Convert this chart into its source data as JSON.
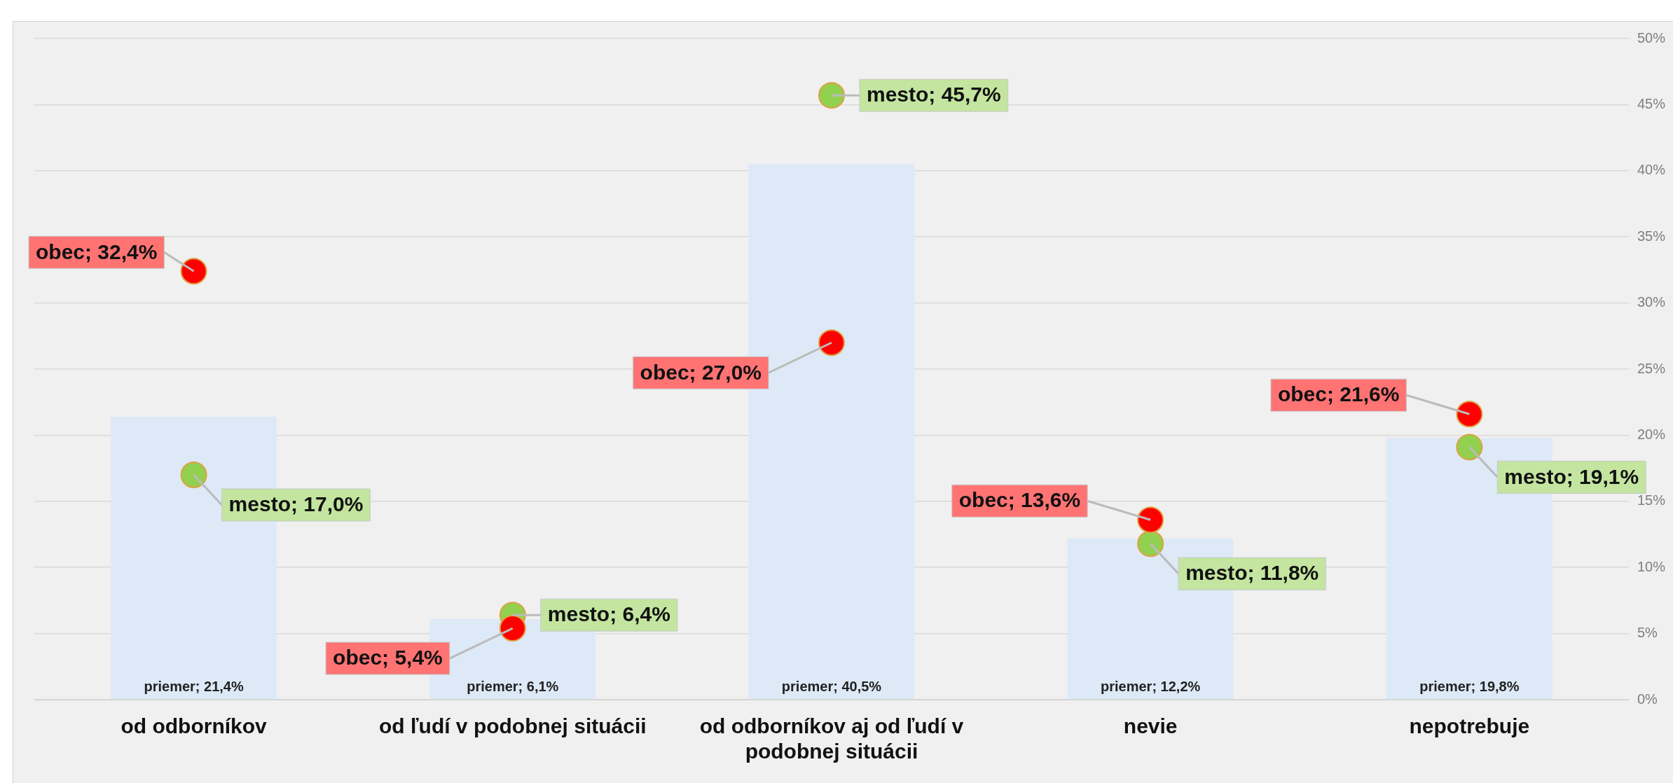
{
  "chart_data": {
    "type": "bar",
    "categories": [
      "od odborníkov",
      "od ľudí v podobnej situácii",
      "od odborníkov aj od ľudí v podobnej situácii",
      "nevie",
      "nepotrebuje"
    ],
    "series": [
      {
        "color": "#dde9f6",
        "values": [
          21.4,
          6.1,
          40.5,
          12.2,
          19.8
        ],
        "value_labels": [
          "priemer; 21,4%",
          "priemer; 6,1%",
          "priemer; 40,5%",
          "priemer; 12,2%",
          "priemer; 19,8%"
        ]
      },
      {
        "type": "scatter",
        "color": "#ff0000",
        "values": [
          32.4,
          5.4,
          27.0,
          13.6,
          21.6
        ],
        "value_labels": [
          "obec; 32,4%",
          "obec; 5,4%",
          "obec; 27,0%",
          "obec; 13,6%",
          "obec; 21,6%"
        ]
      },
      {
        "type": "scatter",
        "color": "#92d050",
        "values": [
          17.0,
          6.4,
          45.7,
          11.8,
          19.1
        ],
        "value_labels": [
          "mesto; 17,0%",
          "mesto; 6,4%",
          "mesto; 45,7%",
          "mesto; 11,8%",
          "mesto; 19,1%"
        ]
      }
    ],
    "ylim": [
      0,
      50
    ],
    "yticks": [
      {
        "value": 0,
        "label": "0%"
      },
      {
        "value": 5,
        "label": "5%"
      },
      {
        "value": 10,
        "label": "10%"
      },
      {
        "value": 15,
        "label": "15%"
      },
      {
        "value": 20,
        "label": "20%"
      },
      {
        "value": 25,
        "label": "25%"
      },
      {
        "value": 30,
        "label": "30%"
      },
      {
        "value": 35,
        "label": "35%"
      },
      {
        "value": 40,
        "label": "40%"
      },
      {
        "value": 45,
        "label": "45%"
      },
      {
        "value": 50,
        "label": "50%"
      }
    ],
    "grid": "y",
    "legend": false,
    "marker": "circle"
  }
}
